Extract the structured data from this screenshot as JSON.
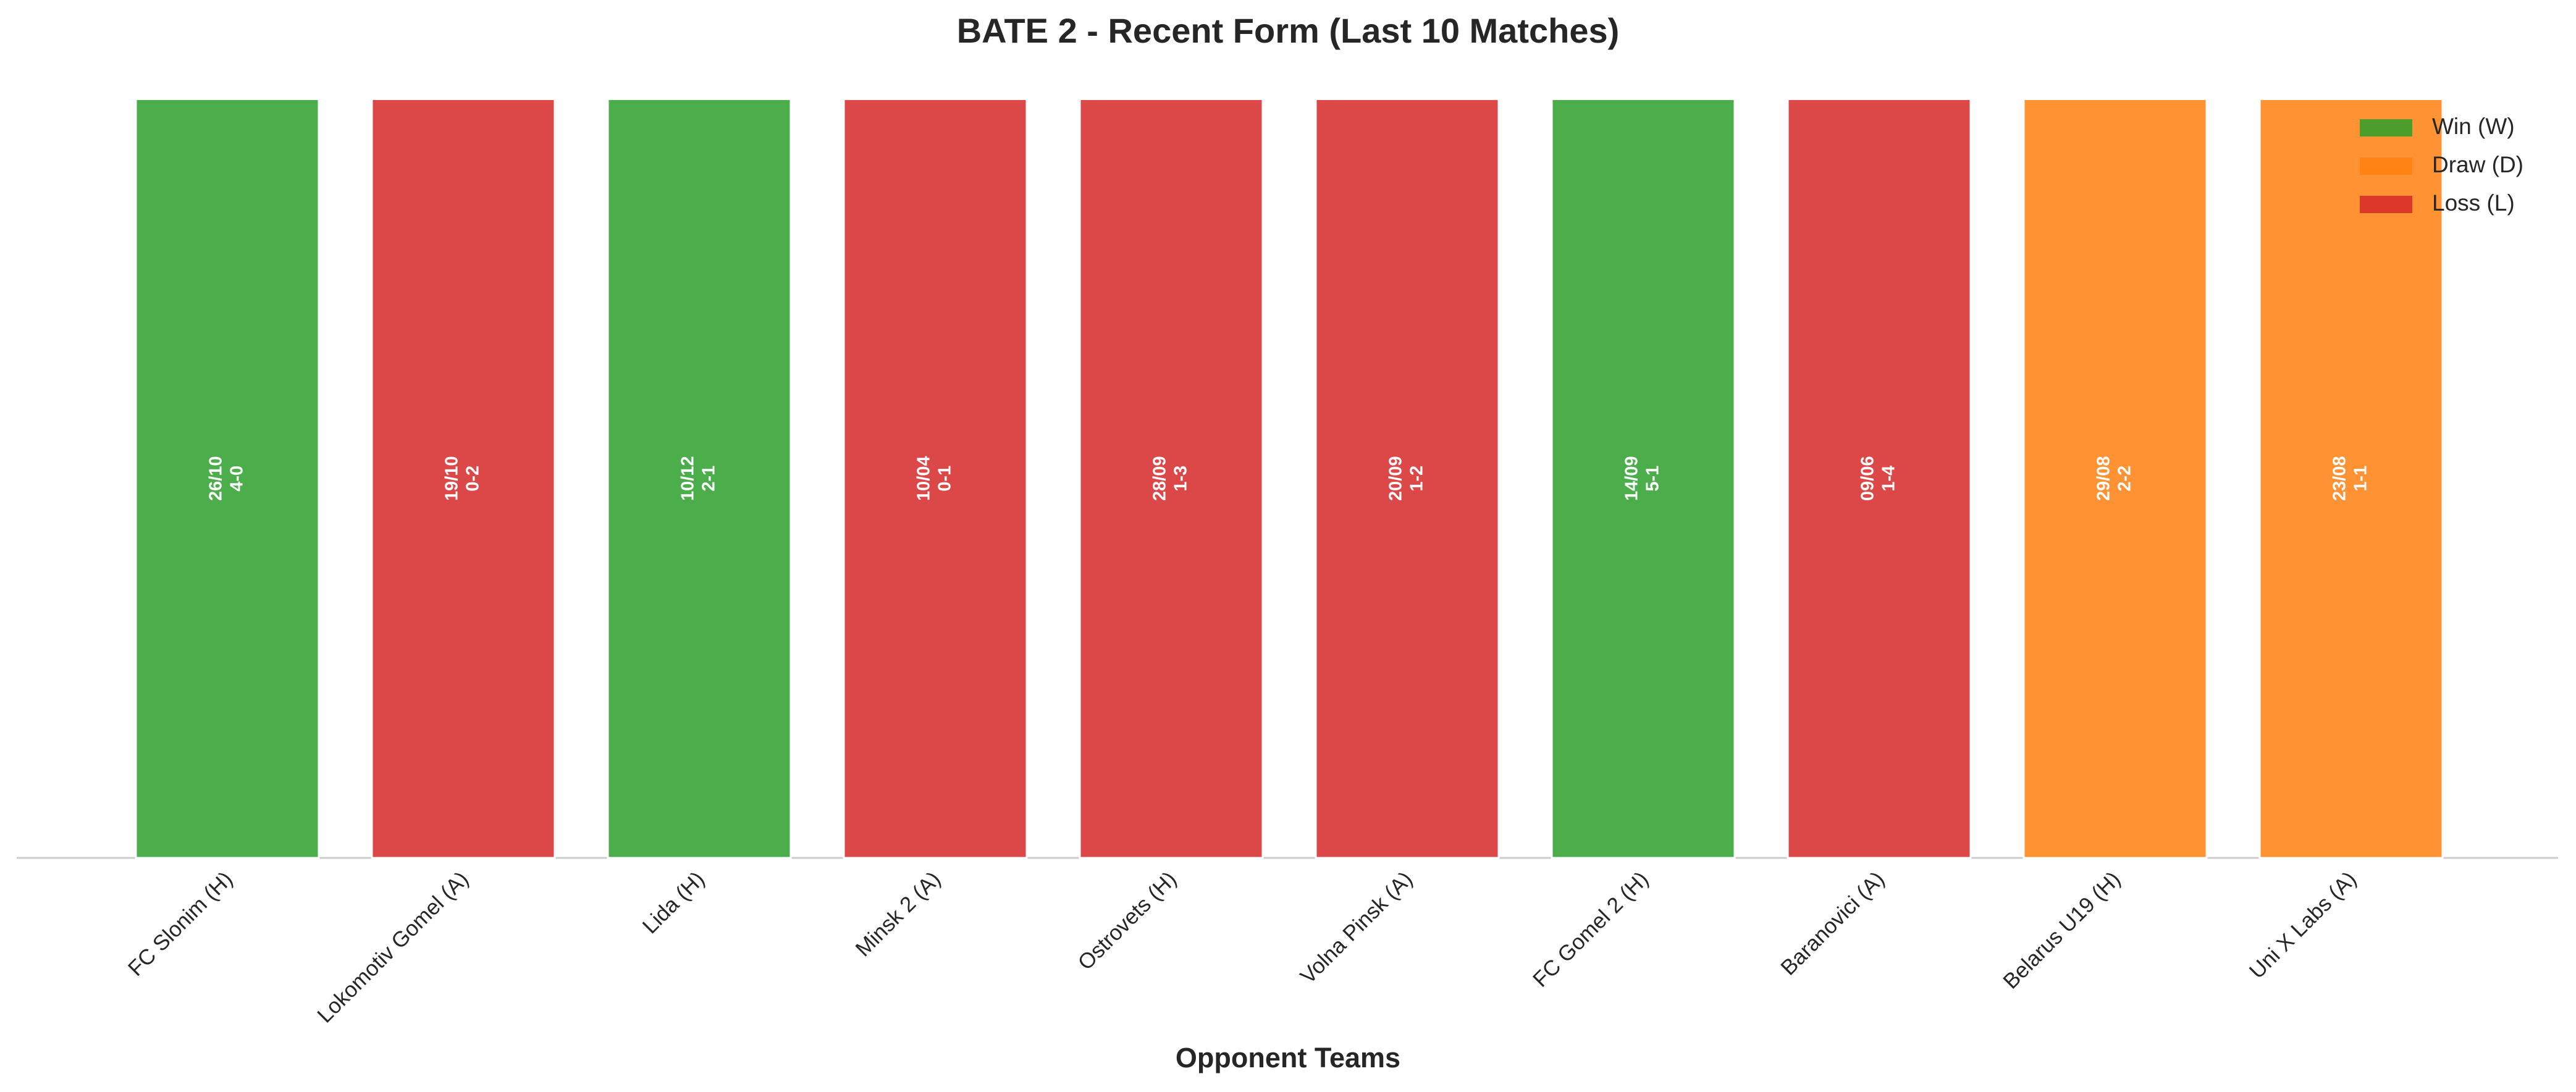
{
  "chart_data": {
    "type": "bar",
    "title": "BATE 2 - Recent Form (Last 10 Matches)",
    "xlabel": "Opponent Teams",
    "categories": [
      "FC Slonim (H)",
      "Lokomotiv Gomel (A)",
      "Lida (H)",
      "Minsk 2 (A)",
      "Ostrovets (H)",
      "Volna Pinsk (A)",
      "FC Gomel 2 (H)",
      "Baranovici (A)",
      "Belarus U19 (H)",
      "Uni X Labs (A)"
    ],
    "values": [
      1,
      1,
      1,
      1,
      1,
      1,
      1,
      1,
      1,
      1
    ],
    "dates": [
      "26/10",
      "19/10",
      "10/12",
      "10/04",
      "28/09",
      "20/09",
      "14/09",
      "09/06",
      "29/08",
      "23/08"
    ],
    "scores": [
      "4-0",
      "0-2",
      "2-1",
      "0-1",
      "1-3",
      "1-2",
      "5-1",
      "1-4",
      "2-2",
      "1-1"
    ],
    "results": [
      "W",
      "L",
      "W",
      "L",
      "L",
      "L",
      "W",
      "L",
      "D",
      "D"
    ],
    "legend": [
      {
        "name": "Win (W)",
        "result": "W",
        "color": "#2ca02c"
      },
      {
        "name": "Draw (D)",
        "result": "D",
        "color": "#ff7f0e"
      },
      {
        "name": "Loss (L)",
        "result": "L",
        "color": "#d62728"
      }
    ],
    "legend_position": "upper right",
    "ylim": [
      0,
      1.05
    ]
  }
}
